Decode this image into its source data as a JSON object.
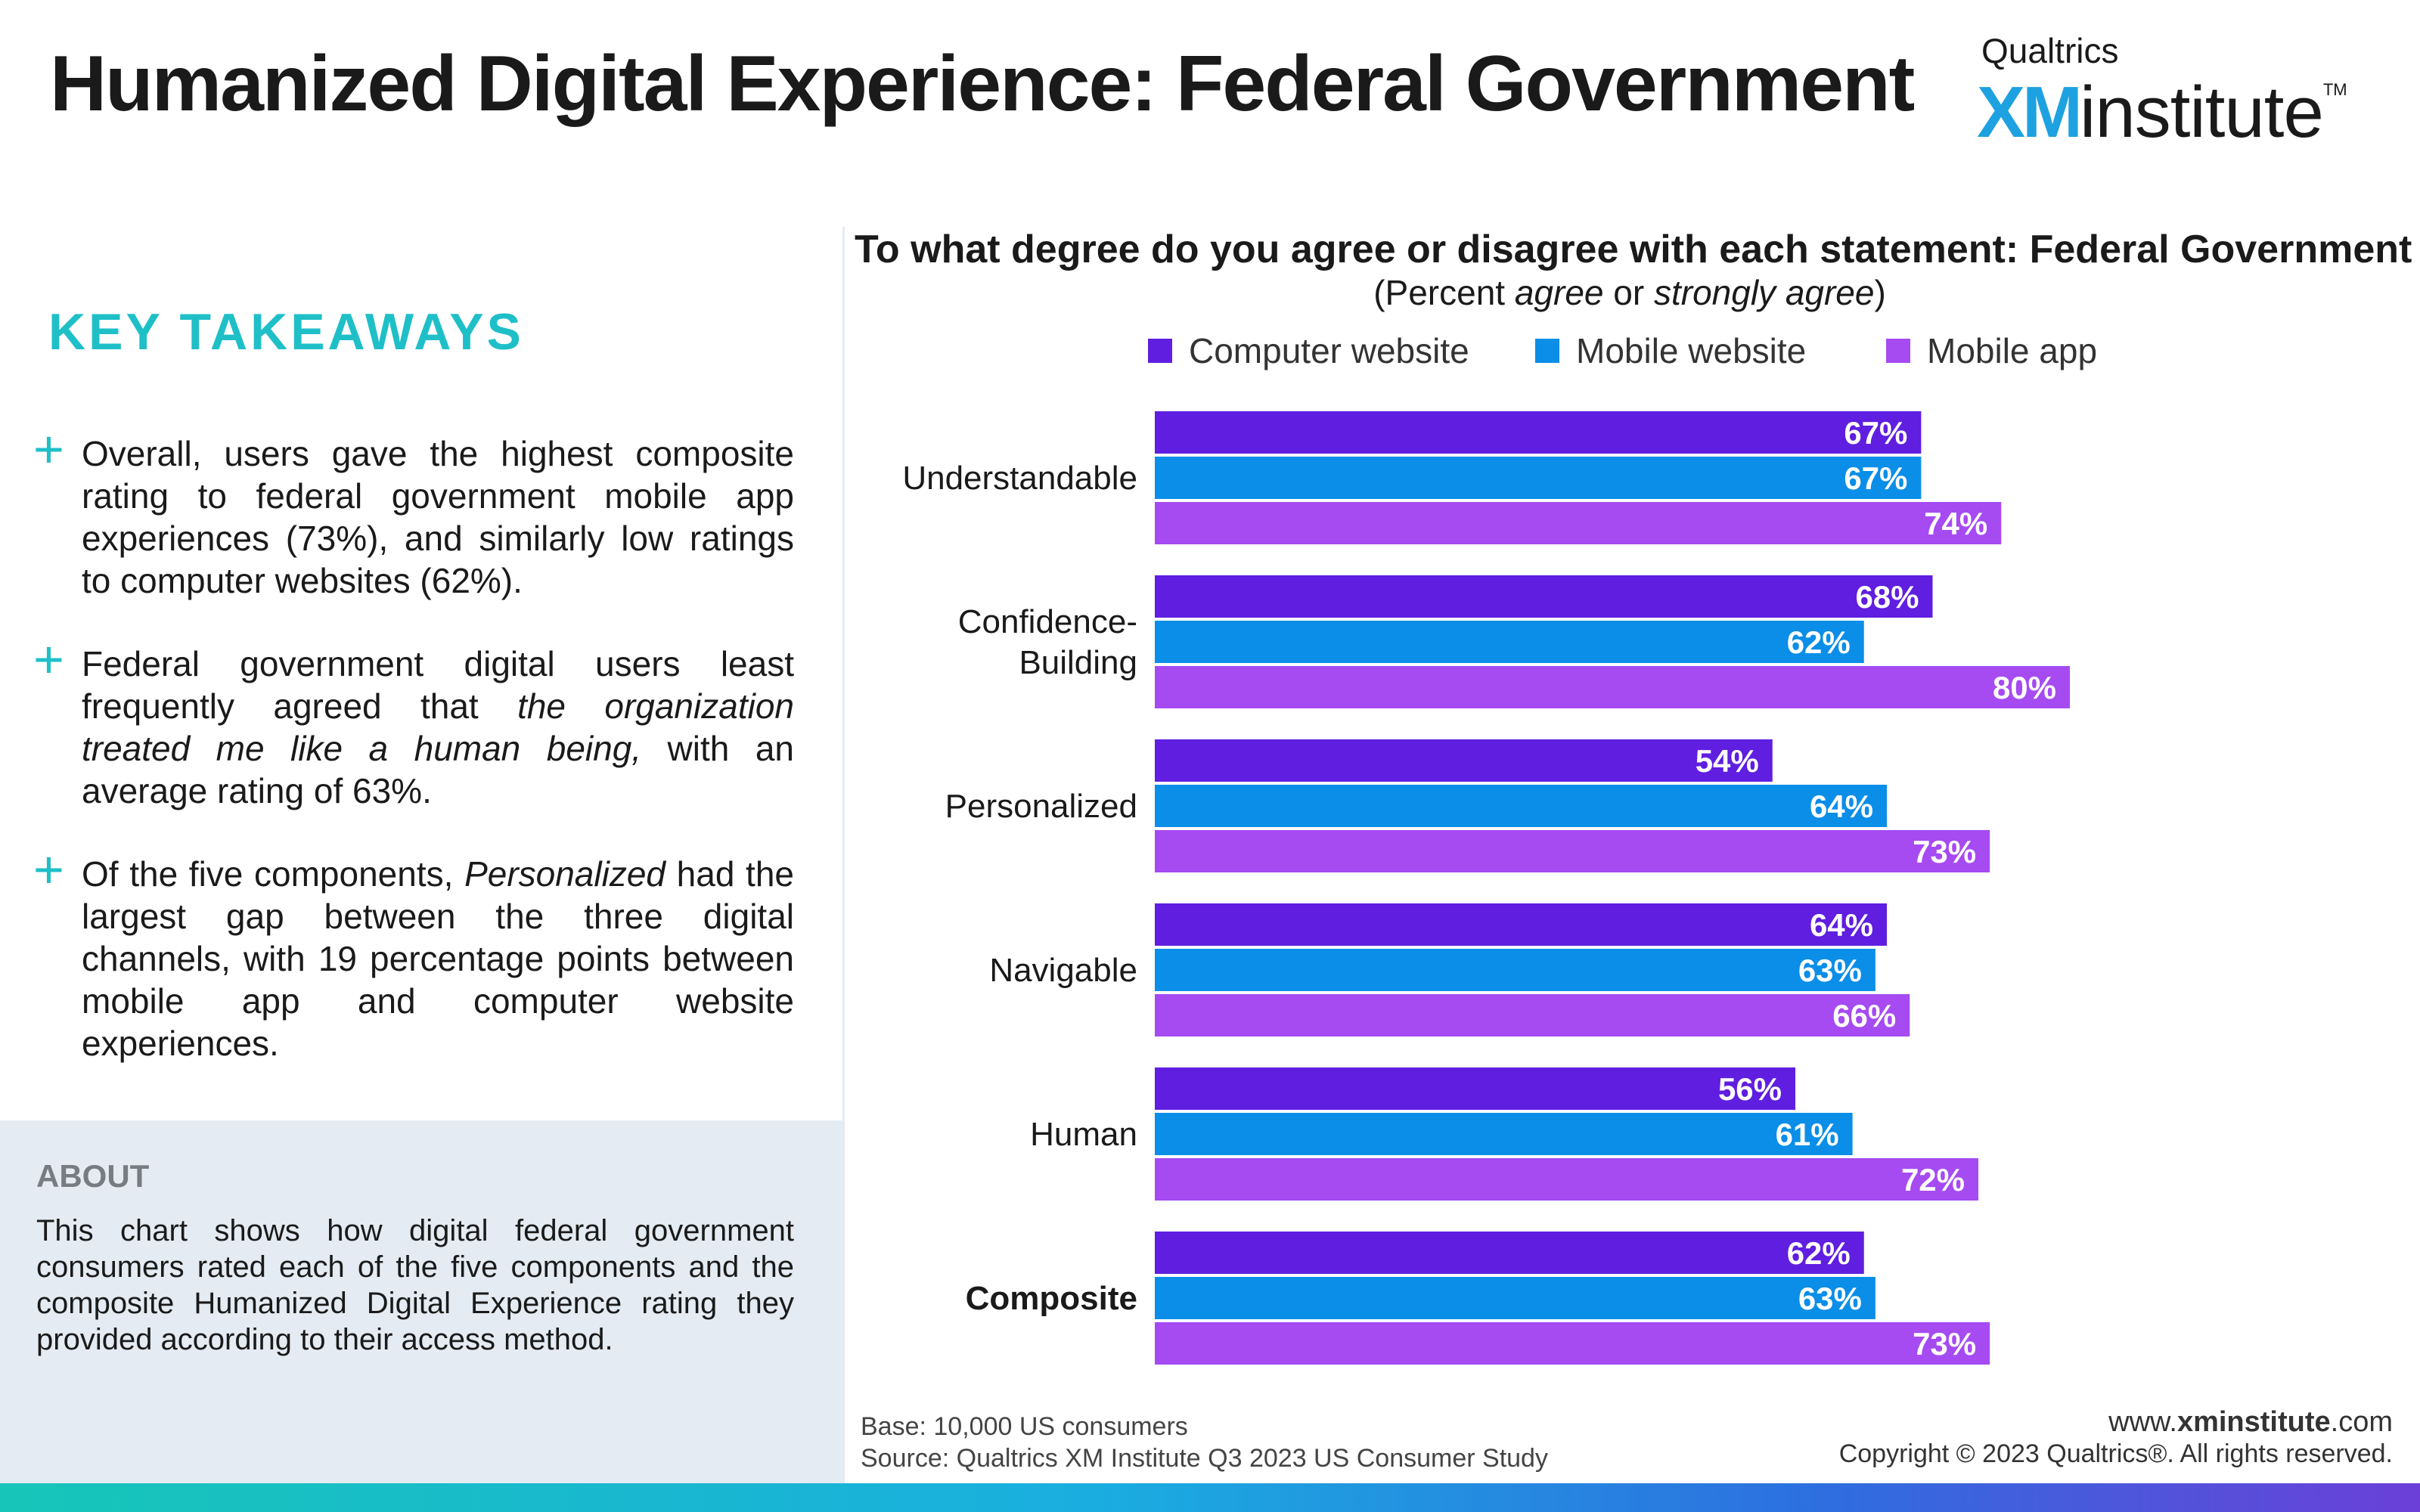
{
  "header": {
    "title": "Humanized Digital Experience: Federal Government",
    "logo_brand": "Qualtrics",
    "logo_xm": "XM",
    "logo_institute": "institute",
    "logo_tm": "TM"
  },
  "takeaways": {
    "heading": "KEY TAKEAWAYS",
    "items": [
      {
        "parts": [
          {
            "t": "Overall, users gave the highest composite rating to federal government mobile app experiences (73%), and similarly low ratings to computer websites (62%).",
            "i": false
          }
        ]
      },
      {
        "parts": [
          {
            "t": "Federal government digital users least frequently agreed that ",
            "i": false
          },
          {
            "t": "the organization treated me like a human being,",
            "i": true
          },
          {
            "t": " with an average rating of 63%.",
            "i": false
          }
        ]
      },
      {
        "parts": [
          {
            "t": "Of the five components, ",
            "i": false
          },
          {
            "t": "Personalized",
            "i": true
          },
          {
            "t": " had the largest gap between the three digital channels, with 19 percentage points between mobile app and computer website experiences.",
            "i": false
          }
        ]
      }
    ]
  },
  "about": {
    "heading": "ABOUT",
    "text": "This chart shows how digital federal government consumers rated each of the five components and the composite Humanized Digital Experience rating they provided according to their access method."
  },
  "chart_data": {
    "type": "bar",
    "orientation": "horizontal",
    "title": "To what degree do you agree or disagree with each statement: Federal Government",
    "subtitle_parts": [
      {
        "t": "(Percent ",
        "i": false
      },
      {
        "t": "agree",
        "i": true
      },
      {
        "t": " or ",
        "i": false
      },
      {
        "t": "strongly agree",
        "i": true
      },
      {
        "t": ")",
        "i": false
      }
    ],
    "categories": [
      "Understandable",
      "Confidence-Building",
      "Personalized",
      "Navigable",
      "Human",
      "Composite"
    ],
    "category_lines": [
      [
        "Understandable"
      ],
      [
        "Confidence-",
        "Building"
      ],
      [
        "Personalized"
      ],
      [
        "Navigable"
      ],
      [
        "Human"
      ],
      [
        "Composite"
      ]
    ],
    "bold_category": "Composite",
    "series": [
      {
        "name": "Computer website",
        "color": "#5f1ee0",
        "values": [
          67,
          68,
          54,
          64,
          56,
          62
        ]
      },
      {
        "name": "Mobile website",
        "color": "#0b8ee8",
        "values": [
          67,
          62,
          64,
          63,
          61,
          63
        ]
      },
      {
        "name": "Mobile app",
        "color": "#a64af2",
        "values": [
          74,
          80,
          73,
          66,
          72,
          73
        ]
      }
    ],
    "value_suffix": "%",
    "xlim": [
      0,
      100
    ],
    "legend_position": "top",
    "grid": false
  },
  "footer": {
    "base": "Base: 10,000 US consumers",
    "source": "Source: Qualtrics XM Institute Q3 2023 US Consumer Study",
    "site_prefix": "www.",
    "site_bold": "xminstitute",
    "site_suffix": ".com",
    "copyright": "Copyright © 2023 Qualtrics®. All rights reserved."
  }
}
